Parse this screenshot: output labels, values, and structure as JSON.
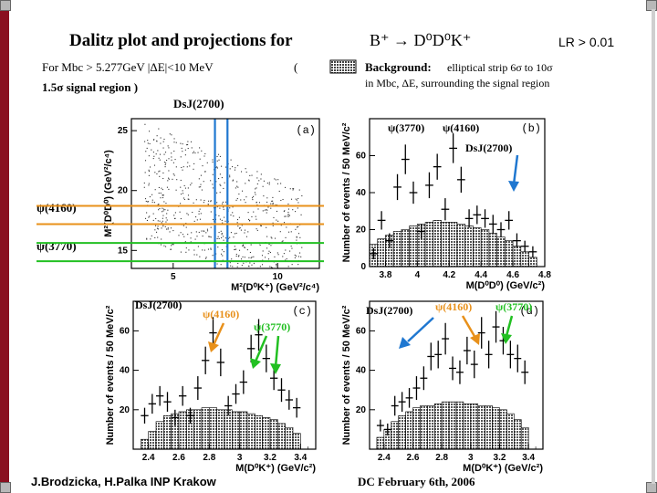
{
  "header": {
    "title": "Dalitz plot and projections for",
    "decay": "B⁺ → D⁰D⁰K⁺",
    "lr_cut": "LR > 0.01",
    "cut_line1": "For Mbc > 5.277GeV  |ΔE|<10 MeV",
    "cut_paren": "(",
    "cut_line2": "1.5σ signal region )",
    "background_label": "Background:",
    "background_desc1": "elliptical strip 6σ  to 10σ",
    "background_desc2": "in Mbc, ΔE, surrounding the signal region",
    "dsj_label": "DsJ(2700)"
  },
  "side_labels": {
    "psi4160": "ψ(4160)",
    "psi3770": "ψ(3770)"
  },
  "footer": {
    "left": "J.Brodzicka, H.Palka  INP Krakow",
    "right": "DC   February 6th, 2006"
  },
  "colors": {
    "dsj": "#1f77d0",
    "psi4160": "#e8901a",
    "psi3770": "#22c022"
  },
  "chart_data": [
    {
      "id": "a",
      "type": "scatter",
      "panel_tag": "(a)",
      "xlabel": "M²(D⁰K⁺) (GeV²/c⁴)",
      "ylabel": "M²(D⁰D⁰) (GeV²/c⁴)",
      "xlim": [
        3,
        12
      ],
      "ylim": [
        13.5,
        26
      ],
      "xticks": [
        5,
        10
      ],
      "yticks": [
        15,
        20,
        25
      ],
      "bands_x": [
        7.0,
        7.6
      ],
      "bands_y": [
        {
          "value": 17.2,
          "key": "psi4160"
        },
        {
          "value": 14.1,
          "key": "psi3770"
        }
      ]
    },
    {
      "id": "b",
      "type": "histogram",
      "panel_tag": "(b)",
      "xlabel": "M(D⁰D⁰) (GeV/c²)",
      "ylabel": "Number of events / 50 MeV/c²",
      "xlim": [
        3.7,
        4.8
      ],
      "ylim": [
        0,
        80
      ],
      "xticks": [
        3.8,
        4,
        4.2,
        4.4,
        4.6,
        4.8
      ],
      "yticks": [
        0,
        20,
        40,
        60
      ],
      "bin_width": 0.05,
      "x": [
        3.725,
        3.775,
        3.825,
        3.875,
        3.925,
        3.975,
        4.025,
        4.075,
        4.125,
        4.175,
        4.225,
        4.275,
        4.325,
        4.375,
        4.425,
        4.475,
        4.525,
        4.575,
        4.625,
        4.675,
        4.725
      ],
      "values": [
        7,
        25,
        14,
        43,
        58,
        40,
        19,
        44,
        54,
        31,
        64,
        47,
        26,
        28,
        26,
        23,
        20,
        25,
        14,
        11,
        8
      ],
      "errors": [
        3,
        5,
        4,
        7,
        8,
        6,
        4,
        7,
        7,
        6,
        8,
        7,
        5,
        5,
        5,
        5,
        4,
        5,
        4,
        3,
        3
      ],
      "background": [
        12,
        15,
        17,
        19,
        20,
        22,
        23,
        24,
        25,
        24,
        24,
        23,
        22,
        21,
        20,
        18,
        16,
        14,
        11,
        8,
        5
      ],
      "annotations": [
        {
          "key": "psi3770",
          "text": "ψ(3770)"
        },
        {
          "key": "psi4160",
          "text": "ψ(4160)"
        },
        {
          "key": "dsj",
          "text": "DsJ(2700)"
        }
      ]
    },
    {
      "id": "c",
      "type": "histogram",
      "panel_tag": "(c)",
      "xlabel": "M(D⁰K⁺) (GeV/c²)",
      "ylabel": "Number of events / 50 MeV/c²",
      "xlim": [
        2.3,
        3.5
      ],
      "ylim": [
        0,
        75
      ],
      "xticks": [
        2.4,
        2.6,
        2.8,
        3,
        3.2,
        3.4
      ],
      "yticks": [
        20,
        40,
        60
      ],
      "bin_width": 0.05,
      "x": [
        2.375,
        2.425,
        2.475,
        2.525,
        2.575,
        2.625,
        2.675,
        2.725,
        2.775,
        2.825,
        2.875,
        2.925,
        2.975,
        3.025,
        3.075,
        3.125,
        3.175,
        3.225,
        3.275,
        3.325,
        3.375
      ],
      "values": [
        17,
        23,
        27,
        24,
        16,
        27,
        17,
        31,
        45,
        59,
        44,
        22,
        28,
        34,
        51,
        58,
        46,
        36,
        30,
        25,
        21
      ],
      "errors": [
        4,
        5,
        5,
        5,
        4,
        5,
        4,
        6,
        7,
        8,
        7,
        5,
        5,
        6,
        7,
        8,
        7,
        6,
        6,
        5,
        5
      ],
      "background": [
        5,
        9,
        14,
        17,
        18,
        19,
        20,
        20,
        21,
        21,
        20,
        20,
        19,
        19,
        18,
        17,
        16,
        15,
        13,
        11,
        8
      ],
      "annotations": [
        {
          "key": "dsj",
          "text": "DsJ(2700)"
        },
        {
          "key": "psi4160",
          "text": "ψ(4160)"
        },
        {
          "key": "psi3770",
          "text": "ψ(3770)"
        }
      ]
    },
    {
      "id": "d",
      "type": "histogram",
      "panel_tag": "(d)",
      "xlabel": "M(D⁰K⁺) (GeV/c²)",
      "ylabel": "Number of events / 50 MeV/c²",
      "xlim": [
        2.3,
        3.5
      ],
      "ylim": [
        0,
        75
      ],
      "xticks": [
        2.4,
        2.6,
        2.8,
        3,
        3.2,
        3.4
      ],
      "yticks": [
        20,
        40,
        60
      ],
      "bin_width": 0.05,
      "x": [
        2.375,
        2.425,
        2.475,
        2.525,
        2.575,
        2.625,
        2.675,
        2.725,
        2.775,
        2.825,
        2.875,
        2.925,
        2.975,
        3.025,
        3.075,
        3.125,
        3.175,
        3.225,
        3.275,
        3.325,
        3.375
      ],
      "values": [
        12,
        10,
        22,
        24,
        26,
        31,
        36,
        47,
        48,
        56,
        41,
        39,
        50,
        43,
        59,
        48,
        62,
        55,
        48,
        46,
        39
      ],
      "errors": [
        3,
        3,
        5,
        5,
        5,
        6,
        6,
        7,
        7,
        8,
        6,
        6,
        7,
        7,
        8,
        7,
        8,
        7,
        7,
        7,
        6
      ],
      "background": [
        6,
        10,
        14,
        17,
        19,
        21,
        22,
        22,
        23,
        24,
        24,
        24,
        23,
        23,
        22,
        22,
        21,
        20,
        18,
        15,
        11
      ],
      "annotations": [
        {
          "key": "dsj",
          "text": "DsJ(2700)"
        },
        {
          "key": "psi4160",
          "text": "ψ(4160)"
        },
        {
          "key": "psi3770",
          "text": "ψ(3770)"
        }
      ]
    }
  ]
}
